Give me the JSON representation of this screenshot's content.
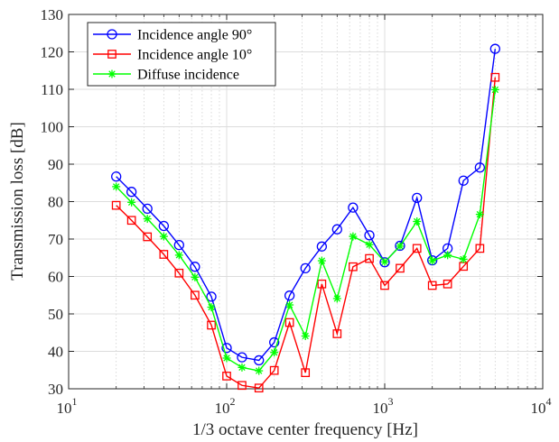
{
  "chart_data": {
    "type": "line",
    "xscale": "log",
    "xlabel": "1/3 octave center frequency [Hz]",
    "ylabel": "Transmission loss [dB]",
    "xlim": [
      10,
      10000
    ],
    "ylim": [
      30,
      130
    ],
    "x_ticks": [
      {
        "base": "10",
        "exp": "1",
        "value": 10
      },
      {
        "base": "10",
        "exp": "2",
        "value": 100
      },
      {
        "base": "10",
        "exp": "3",
        "value": 1000
      },
      {
        "base": "10",
        "exp": "4",
        "value": 10000
      }
    ],
    "y_ticks": [
      30,
      40,
      50,
      60,
      70,
      80,
      90,
      100,
      110,
      120,
      130
    ],
    "grid": true,
    "legend_position": "top-left",
    "x": [
      20,
      25,
      31.5,
      40,
      50,
      63,
      80,
      100,
      125,
      160,
      200,
      250,
      315,
      400,
      500,
      630,
      800,
      1000,
      1250,
      1600,
      2000,
      2500,
      3150,
      4000,
      5000
    ],
    "series": [
      {
        "name": "Incidence angle 90°",
        "color": "#0000ff",
        "marker": "circle",
        "values": [
          86.7,
          82.6,
          78.1,
          73.5,
          68.4,
          62.6,
          54.6,
          40.9,
          38.4,
          37.6,
          42.4,
          54.9,
          62.2,
          68.0,
          72.6,
          78.4,
          71.0,
          63.8,
          68.2,
          81.0,
          64.3,
          67.5,
          85.6,
          89.1,
          120.8
        ]
      },
      {
        "name": "Incidence angle 10°",
        "color": "#ff0000",
        "marker": "square",
        "values": [
          79.0,
          75.0,
          70.6,
          65.9,
          60.9,
          55.0,
          47.0,
          33.4,
          30.9,
          30.2,
          34.9,
          47.7,
          34.3,
          58.0,
          44.7,
          62.6,
          64.8,
          57.6,
          62.2,
          67.5,
          57.6,
          58.0,
          62.7,
          67.5,
          113.2
        ]
      },
      {
        "name": "Diffuse incidence",
        "color": "#00ff00",
        "marker": "asterisk",
        "values": [
          84.0,
          79.8,
          75.4,
          70.7,
          65.7,
          59.8,
          51.8,
          38.2,
          35.7,
          34.8,
          39.7,
          52.4,
          44.1,
          64.2,
          54.1,
          70.7,
          68.5,
          63.9,
          68.1,
          74.7,
          64.2,
          65.7,
          64.6,
          76.6,
          109.9
        ]
      }
    ]
  }
}
